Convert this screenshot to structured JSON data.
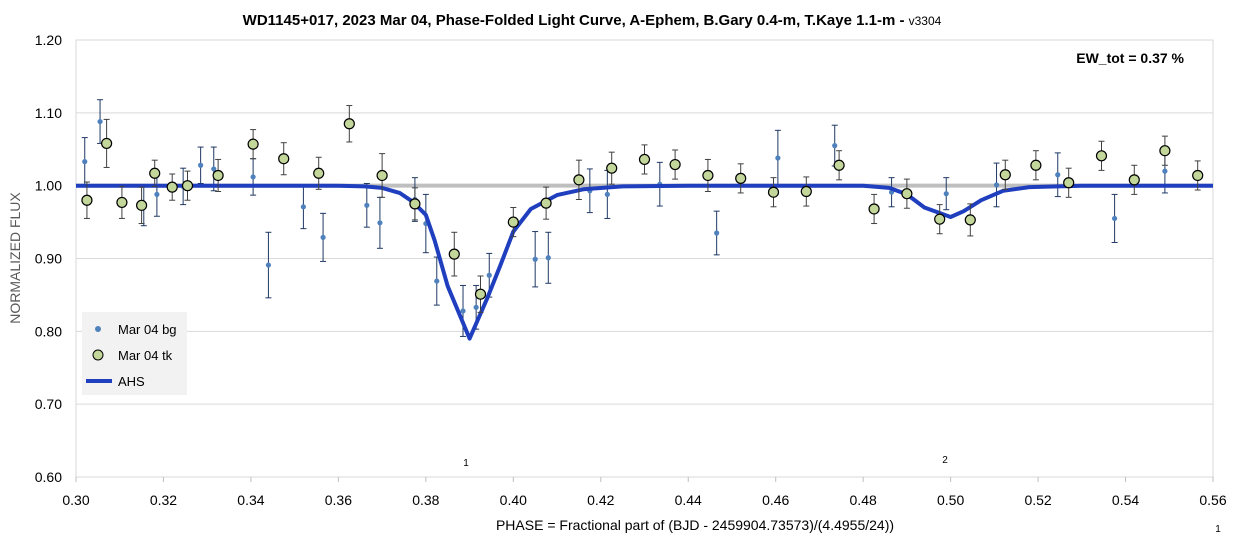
{
  "chart_data": {
    "type": "scatter",
    "title": "WD1145+017, 2023 Mar 04, Phase-Folded Light Curve, A-Ephem, B.Gary 0.4-m, T.Kaye 1.1-m - ",
    "title_version": "v3304",
    "xlabel": "PHASE = Fractional part of (BJD - 2459904.73573)/(4.4955/24))",
    "ylabel": "NORMALIZED FLUX",
    "xlim": [
      0.3,
      0.56
    ],
    "ylim": [
      0.6,
      1.2
    ],
    "x_ticks": [
      "0.30",
      "0.32",
      "0.34",
      "0.36",
      "0.38",
      "0.40",
      "0.42",
      "0.44",
      "0.46",
      "0.48",
      "0.50",
      "0.52",
      "0.54",
      "0.56"
    ],
    "y_ticks": [
      "0.60",
      "0.70",
      "0.80",
      "0.90",
      "1.00",
      "1.10",
      "1.20"
    ],
    "grid": "horizontal",
    "legend_position": "bottom-left",
    "annotations": {
      "ew_tot": "EW_tot = 0.37 %",
      "dip1_label": "1",
      "dip2_label": "2",
      "corner_label": "1"
    },
    "reference_line": {
      "y": 1.0,
      "color": "#bfbfbf"
    },
    "series": [
      {
        "name": "Mar 04 bg",
        "kind": "points",
        "color": "#4f81bd",
        "points": [
          {
            "x": 0.302,
            "y": 1.033,
            "err": 0.033
          },
          {
            "x": 0.3055,
            "y": 1.088,
            "err": 0.03
          },
          {
            "x": 0.3155,
            "y": 0.973,
            "err": 0.028
          },
          {
            "x": 0.3185,
            "y": 0.988,
            "err": 0.03
          },
          {
            "x": 0.3245,
            "y": 0.999,
            "err": 0.025
          },
          {
            "x": 0.3285,
            "y": 1.028,
            "err": 0.025
          },
          {
            "x": 0.3315,
            "y": 1.023,
            "err": 0.03
          },
          {
            "x": 0.3405,
            "y": 1.012,
            "err": 0.025
          },
          {
            "x": 0.344,
            "y": 0.891,
            "err": 0.045
          },
          {
            "x": 0.352,
            "y": 0.971,
            "err": 0.03
          },
          {
            "x": 0.3565,
            "y": 0.929,
            "err": 0.033
          },
          {
            "x": 0.3665,
            "y": 0.973,
            "err": 0.03
          },
          {
            "x": 0.3695,
            "y": 0.949,
            "err": 0.035
          },
          {
            "x": 0.3775,
            "y": 0.981,
            "err": 0.03
          },
          {
            "x": 0.38,
            "y": 0.948,
            "err": 0.04
          },
          {
            "x": 0.3825,
            "y": 0.869,
            "err": 0.033
          },
          {
            "x": 0.3885,
            "y": 0.828,
            "err": 0.035
          },
          {
            "x": 0.3915,
            "y": 0.833,
            "err": 0.03
          },
          {
            "x": 0.3945,
            "y": 0.877,
            "err": 0.03
          },
          {
            "x": 0.405,
            "y": 0.899,
            "err": 0.038
          },
          {
            "x": 0.408,
            "y": 0.901,
            "err": 0.035
          },
          {
            "x": 0.4175,
            "y": 0.993,
            "err": 0.03
          },
          {
            "x": 0.4215,
            "y": 0.988,
            "err": 0.033
          },
          {
            "x": 0.4335,
            "y": 1.002,
            "err": 0.03
          },
          {
            "x": 0.4465,
            "y": 0.935,
            "err": 0.03
          },
          {
            "x": 0.4605,
            "y": 1.038,
            "err": 0.038
          },
          {
            "x": 0.4735,
            "y": 1.055,
            "err": 0.028
          },
          {
            "x": 0.4865,
            "y": 0.991,
            "err": 0.02
          },
          {
            "x": 0.499,
            "y": 0.989,
            "err": 0.022
          },
          {
            "x": 0.5105,
            "y": 1.001,
            "err": 0.03
          },
          {
            "x": 0.5245,
            "y": 1.015,
            "err": 0.03
          },
          {
            "x": 0.5375,
            "y": 0.955,
            "err": 0.033
          },
          {
            "x": 0.549,
            "y": 1.02,
            "err": 0.03
          }
        ]
      },
      {
        "name": "Mar 04 tk",
        "kind": "circles",
        "color": "#c4d79b",
        "edge": "#000000",
        "points": [
          {
            "x": 0.3025,
            "y": 0.98,
            "err": 0.025
          },
          {
            "x": 0.307,
            "y": 1.058,
            "err": 0.033
          },
          {
            "x": 0.3105,
            "y": 0.977,
            "err": 0.022
          },
          {
            "x": 0.315,
            "y": 0.973,
            "err": 0.025
          },
          {
            "x": 0.318,
            "y": 1.017,
            "err": 0.018
          },
          {
            "x": 0.322,
            "y": 0.998,
            "err": 0.018
          },
          {
            "x": 0.3255,
            "y": 1.0,
            "err": 0.02
          },
          {
            "x": 0.3325,
            "y": 1.014,
            "err": 0.022
          },
          {
            "x": 0.3405,
            "y": 1.057,
            "err": 0.02
          },
          {
            "x": 0.3475,
            "y": 1.037,
            "err": 0.022
          },
          {
            "x": 0.3555,
            "y": 1.017,
            "err": 0.022
          },
          {
            "x": 0.3625,
            "y": 1.085,
            "err": 0.025
          },
          {
            "x": 0.37,
            "y": 1.014,
            "err": 0.03
          },
          {
            "x": 0.3775,
            "y": 0.975,
            "err": 0.022
          },
          {
            "x": 0.3865,
            "y": 0.906,
            "err": 0.03
          },
          {
            "x": 0.3925,
            "y": 0.851,
            "err": 0.025
          },
          {
            "x": 0.4,
            "y": 0.95,
            "err": 0.02
          },
          {
            "x": 0.4075,
            "y": 0.976,
            "err": 0.022
          },
          {
            "x": 0.415,
            "y": 1.008,
            "err": 0.027
          },
          {
            "x": 0.4225,
            "y": 1.024,
            "err": 0.022
          },
          {
            "x": 0.43,
            "y": 1.036,
            "err": 0.02
          },
          {
            "x": 0.437,
            "y": 1.029,
            "err": 0.02
          },
          {
            "x": 0.4445,
            "y": 1.014,
            "err": 0.022
          },
          {
            "x": 0.452,
            "y": 1.01,
            "err": 0.02
          },
          {
            "x": 0.4595,
            "y": 0.991,
            "err": 0.02
          },
          {
            "x": 0.467,
            "y": 0.992,
            "err": 0.02
          },
          {
            "x": 0.4745,
            "y": 1.028,
            "err": 0.02
          },
          {
            "x": 0.4825,
            "y": 0.968,
            "err": 0.02
          },
          {
            "x": 0.49,
            "y": 0.989,
            "err": 0.02
          },
          {
            "x": 0.4975,
            "y": 0.954,
            "err": 0.02
          },
          {
            "x": 0.5045,
            "y": 0.953,
            "err": 0.022
          },
          {
            "x": 0.5125,
            "y": 1.015,
            "err": 0.02
          },
          {
            "x": 0.5195,
            "y": 1.028,
            "err": 0.02
          },
          {
            "x": 0.527,
            "y": 1.004,
            "err": 0.02
          },
          {
            "x": 0.5345,
            "y": 1.041,
            "err": 0.02
          },
          {
            "x": 0.542,
            "y": 1.008,
            "err": 0.02
          },
          {
            "x": 0.549,
            "y": 1.048,
            "err": 0.02
          },
          {
            "x": 0.5565,
            "y": 1.014,
            "err": 0.02
          }
        ]
      },
      {
        "name": "AHS",
        "kind": "line",
        "color": "#1f3fbf",
        "points": [
          {
            "x": 0.3,
            "y": 1.0
          },
          {
            "x": 0.36,
            "y": 1.0
          },
          {
            "x": 0.366,
            "y": 0.999
          },
          {
            "x": 0.37,
            "y": 0.997
          },
          {
            "x": 0.374,
            "y": 0.99
          },
          {
            "x": 0.377,
            "y": 0.978
          },
          {
            "x": 0.38,
            "y": 0.96
          },
          {
            "x": 0.382,
            "y": 0.925
          },
          {
            "x": 0.385,
            "y": 0.862
          },
          {
            "x": 0.39,
            "y": 0.79
          },
          {
            "x": 0.394,
            "y": 0.845
          },
          {
            "x": 0.397,
            "y": 0.89
          },
          {
            "x": 0.4,
            "y": 0.937
          },
          {
            "x": 0.404,
            "y": 0.968
          },
          {
            "x": 0.41,
            "y": 0.987
          },
          {
            "x": 0.416,
            "y": 0.995
          },
          {
            "x": 0.425,
            "y": 0.999
          },
          {
            "x": 0.44,
            "y": 1.0
          },
          {
            "x": 0.48,
            "y": 1.0
          },
          {
            "x": 0.486,
            "y": 0.997
          },
          {
            "x": 0.49,
            "y": 0.988
          },
          {
            "x": 0.494,
            "y": 0.97
          },
          {
            "x": 0.5,
            "y": 0.957
          },
          {
            "x": 0.503,
            "y": 0.965
          },
          {
            "x": 0.507,
            "y": 0.98
          },
          {
            "x": 0.512,
            "y": 0.993
          },
          {
            "x": 0.518,
            "y": 0.998
          },
          {
            "x": 0.53,
            "y": 1.0
          },
          {
            "x": 0.56,
            "y": 1.0
          }
        ]
      }
    ]
  }
}
